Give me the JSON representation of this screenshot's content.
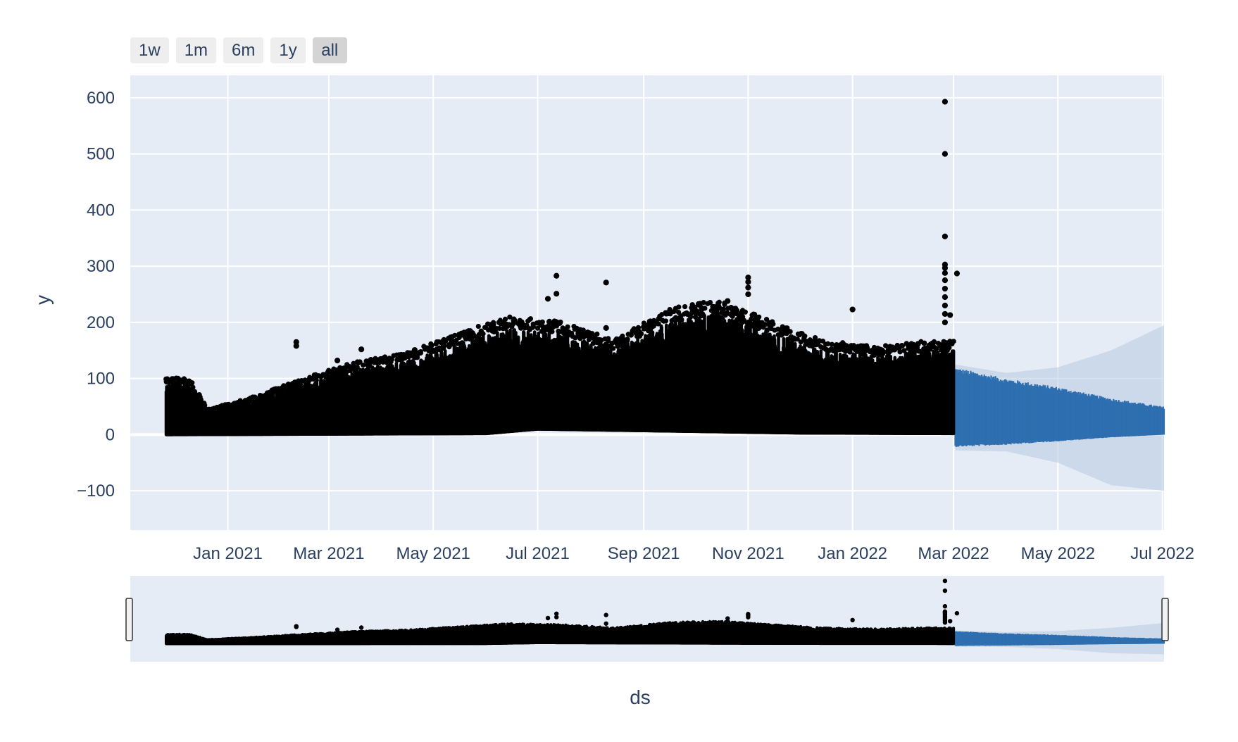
{
  "range_selector": {
    "buttons": [
      {
        "label": "1w"
      },
      {
        "label": "1m"
      },
      {
        "label": "6m"
      },
      {
        "label": "1y"
      },
      {
        "label": "all"
      }
    ],
    "active": "all"
  },
  "colors": {
    "plot_bg": "#e5ecf6",
    "grid": "#ffffff",
    "points": "#000000",
    "forecast": "#2e6fb0",
    "forecast_band": "#b7cbe2",
    "text": "#2a3f5f"
  },
  "chart_data": {
    "type": "scatter",
    "title": "",
    "xlabel": "ds",
    "ylabel": "y",
    "xlim": [
      "2020-11-05",
      "2022-07-02"
    ],
    "ylim": [
      -170,
      640
    ],
    "x_ticks": [
      "Jan 2021",
      "Mar 2021",
      "May 2021",
      "Jul 2021",
      "Sep 2021",
      "Nov 2021",
      "Jan 2022",
      "Mar 2022",
      "May 2022",
      "Jul 2022"
    ],
    "y_ticks": [
      "600",
      "500",
      "400",
      "300",
      "200",
      "100",
      "0",
      "−100"
    ],
    "grid": true,
    "rangeslider": true,
    "series": [
      {
        "type": "scatter",
        "description_note": "observed values (hourly), approximate upper envelope",
        "x_start": "2020-11-26",
        "x_end": "2022-03-01",
        "envelope_dates": [
          "2020-11-26",
          "2020-12-10",
          "2020-12-20",
          "2021-01-15",
          "2021-02-15",
          "2021-03-15",
          "2021-04-15",
          "2021-05-15",
          "2021-06-15",
          "2021-07-15",
          "2021-08-15",
          "2021-09-15",
          "2021-10-15",
          "2021-11-15",
          "2021-12-15",
          "2022-01-15",
          "2022-02-15",
          "2022-03-01"
        ],
        "envelope_max": [
          90,
          90,
          40,
          60,
          90,
          115,
          130,
          160,
          190,
          180,
          150,
          200,
          215,
          180,
          150,
          140,
          150,
          150
        ],
        "baseline_dates": [
          "2020-11-26",
          "2021-06-01",
          "2021-07-01",
          "2021-12-01",
          "2022-03-01"
        ],
        "baseline_min": [
          0,
          2,
          10,
          3,
          2
        ],
        "outliers": [
          {
            "x": "2021-02-10",
            "y": 165
          },
          {
            "x": "2021-02-10",
            "y": 158
          },
          {
            "x": "2021-03-06",
            "y": 132
          },
          {
            "x": "2021-03-20",
            "y": 152
          },
          {
            "x": "2021-07-12",
            "y": 283
          },
          {
            "x": "2021-07-12",
            "y": 251
          },
          {
            "x": "2021-07-07",
            "y": 242
          },
          {
            "x": "2021-08-10",
            "y": 271
          },
          {
            "x": "2021-08-10",
            "y": 190
          },
          {
            "x": "2021-10-20",
            "y": 238
          },
          {
            "x": "2021-11-01",
            "y": 280
          },
          {
            "x": "2021-11-01",
            "y": 272
          },
          {
            "x": "2021-11-01",
            "y": 262
          },
          {
            "x": "2021-11-01",
            "y": 250
          },
          {
            "x": "2022-01-01",
            "y": 223
          },
          {
            "x": "2022-02-24",
            "y": 593
          },
          {
            "x": "2022-02-24",
            "y": 500
          },
          {
            "x": "2022-02-24",
            "y": 353
          },
          {
            "x": "2022-02-24",
            "y": 303
          },
          {
            "x": "2022-02-24",
            "y": 297
          },
          {
            "x": "2022-02-24",
            "y": 288
          },
          {
            "x": "2022-02-24",
            "y": 275
          },
          {
            "x": "2022-02-24",
            "y": 260
          },
          {
            "x": "2022-02-24",
            "y": 245
          },
          {
            "x": "2022-02-24",
            "y": 230
          },
          {
            "x": "2022-02-24",
            "y": 215
          },
          {
            "x": "2022-02-24",
            "y": 200
          },
          {
            "x": "2022-03-03",
            "y": 287
          },
          {
            "x": "2022-02-27",
            "y": 213
          }
        ]
      },
      {
        "type": "line",
        "description_note": "forecast yhat oscillation range",
        "x_start": "2022-03-02",
        "x_end": "2022-07-02",
        "band_dates": [
          "2022-03-02",
          "2022-04-01",
          "2022-05-01",
          "2022-06-01",
          "2022-07-02"
        ],
        "yhat_upper": [
          120,
          100,
          85,
          65,
          50
        ],
        "yhat_lower": [
          -22,
          -18,
          -12,
          -5,
          0
        ]
      },
      {
        "type": "area",
        "description_note": "uncertainty interval",
        "band_dates": [
          "2022-03-02",
          "2022-04-01",
          "2022-05-01",
          "2022-06-01",
          "2022-07-02"
        ],
        "upper": [
          125,
          110,
          120,
          150,
          195
        ],
        "lower": [
          -28,
          -30,
          -50,
          -90,
          -100
        ]
      }
    ]
  }
}
